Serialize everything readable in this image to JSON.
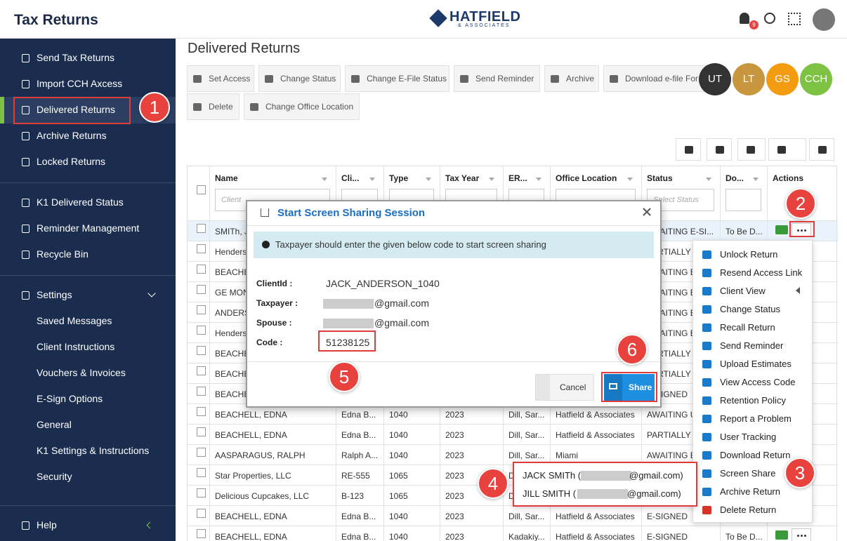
{
  "header": {
    "title": "Tax Returns",
    "logo": "HATFIELD",
    "logo_sub": "& ASSOCIATES",
    "notification_count": 9
  },
  "sidebar": {
    "groups": [
      [
        "Send Tax Returns",
        "Import CCH Axcess",
        "Delivered Returns",
        "Archive Returns",
        "Locked Returns"
      ],
      [
        "K1 Delivered Status",
        "Reminder Management",
        "Recycle Bin"
      ]
    ],
    "settings": "Settings",
    "settings_items": [
      "Saved Messages",
      "Client Instructions",
      "Vouchers & Invoices",
      "E-Sign Options",
      "General",
      "K1 Settings & Instructions",
      "Security"
    ],
    "help": "Help"
  },
  "page_title": "Delivered Returns",
  "toolbar": [
    [
      "Set Access",
      "Change Status",
      "Change E-File Status",
      "Send Reminder",
      "Archive",
      "Download e-file For"
    ],
    [
      "Delete",
      "Change Office Location"
    ]
  ],
  "avatars": [
    "UT",
    "LT",
    "GS",
    "CCH"
  ],
  "table": {
    "columns": [
      {
        "key": "name",
        "label": "Name"
      },
      {
        "key": "client",
        "label": "Cli..."
      },
      {
        "key": "type",
        "label": "Type"
      },
      {
        "key": "year",
        "label": "Tax Year"
      },
      {
        "key": "er",
        "label": "ER..."
      },
      {
        "key": "office",
        "label": "Office Location"
      },
      {
        "key": "status",
        "label": "Status"
      },
      {
        "key": "due",
        "label": "Do..."
      },
      {
        "key": "actions",
        "label": "Actions"
      }
    ],
    "filters": {
      "name": "Client",
      "status": "Select Status"
    },
    "rows": [
      {
        "name": "SMITh, J",
        "status": "AWAITING E-SI...",
        "due": "To Be D..."
      },
      {
        "name": "Henders",
        "status": "PARTIALLY S"
      },
      {
        "name": "BEACHE",
        "status": "AWAITING E"
      },
      {
        "name": "GE MON",
        "status": "AWAITING E"
      },
      {
        "name": "ANDERS",
        "status": "AWAITING E"
      },
      {
        "name": "Henders",
        "status": "AWAITING E"
      },
      {
        "name": "BEACHE",
        "status": "PARTIALLY S"
      },
      {
        "name": "BEACHE",
        "status": "PARTIALLY S"
      },
      {
        "name": "BEACHE",
        "status": "E-SIGNED"
      },
      {
        "name": "BEACHELL, EDNA",
        "client": "Edna B...",
        "type": "1040",
        "year": "2023",
        "er": "Dill, Sar...",
        "office": "Hatfield & Associates",
        "status": "AWAITING U"
      },
      {
        "name": "BEACHELL, EDNA",
        "client": "Edna B...",
        "type": "1040",
        "year": "2023",
        "er": "Dill, Sar...",
        "office": "Hatfield & Associates",
        "status": "PARTIALLY S"
      },
      {
        "name": "AASPARAGUS, RALPH",
        "client": "Ralph A...",
        "type": "1040",
        "year": "2023",
        "er": "Dill, Sar...",
        "office": "Miami",
        "status": "AWAITING E"
      },
      {
        "name": "Star Properties, LLC",
        "client": "RE-555",
        "type": "1065",
        "year": "2023",
        "er": "Dill, Sar..."
      },
      {
        "name": "Delicious Cupcakes, LLC",
        "client": "B-123",
        "type": "1065",
        "year": "2023",
        "er": "Dill, Sar..."
      },
      {
        "name": "BEACHELL, EDNA",
        "client": "Edna B...",
        "type": "1040",
        "year": "2023",
        "er": "Dill, Sar...",
        "office": "Hatfield & Associates",
        "status": "E-SIGNED"
      },
      {
        "name": "BEACHELL, EDNA",
        "client": "Edna B...",
        "type": "1040",
        "year": "2023",
        "er": "Kadakiy...",
        "office": "Hatfield & Associates",
        "status": "E-SIGNED",
        "due": "To Be D..."
      }
    ]
  },
  "modal": {
    "title": "Start Screen Sharing Session",
    "info": "Taxpayer should enter the given below code to start screen sharing",
    "fields": [
      {
        "label": "ClientId :",
        "value": "JACK_ANDERSON_1040"
      },
      {
        "label": "Taxpayer :",
        "value": "@gmail.com"
      },
      {
        "label": "Spouse :",
        "value": "@gmail.com"
      },
      {
        "label": "Code :",
        "value": "51238125"
      }
    ],
    "cancel": "Cancel",
    "share": "Share"
  },
  "action_menu": [
    "Unlock Return",
    "Resend Access Link",
    "Client View",
    "Change Status",
    "Recall Return",
    "Send Reminder",
    "Upload Estimates",
    "View Access Code",
    "Retention Policy",
    "Report a Problem",
    "User Tracking",
    "Download Return",
    "Screen Share",
    "Archive Return",
    "Delete Return"
  ],
  "share_targets": [
    {
      "name": "JACK SMITh (",
      "email": "@gmail.com)"
    },
    {
      "name": "JILL SMITH (",
      "email": "@gmail.com)"
    }
  ],
  "callouts": [
    "1",
    "2",
    "3",
    "4",
    "5",
    "6"
  ]
}
